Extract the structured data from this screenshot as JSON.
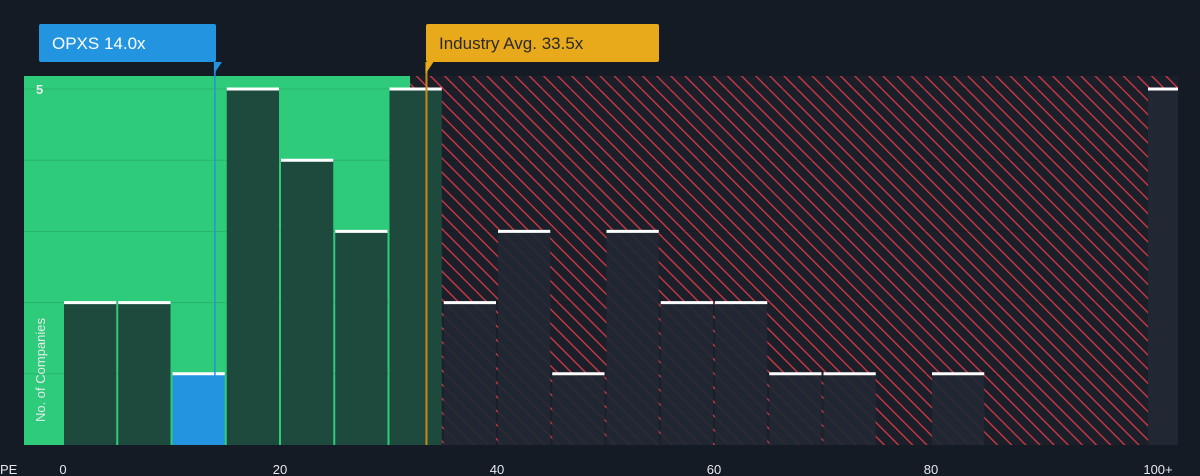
{
  "chart_data": {
    "type": "bar",
    "x_axis_label": "PE",
    "y_axis_label": "No. of Companies",
    "x_ticks": [
      "0",
      "20",
      "40",
      "60",
      "80",
      "100+"
    ],
    "y_ticks": [
      "5"
    ],
    "ylim": [
      0,
      5.2
    ],
    "bins": [
      {
        "x0": 0,
        "x1": 5,
        "value": 2
      },
      {
        "x0": 5,
        "x1": 10,
        "value": 2
      },
      {
        "x0": 10,
        "x1": 15,
        "value": 1
      },
      {
        "x0": 15,
        "x1": 20,
        "value": 5
      },
      {
        "x0": 20,
        "x1": 25,
        "value": 4
      },
      {
        "x0": 25,
        "x1": 30,
        "value": 3
      },
      {
        "x0": 30,
        "x1": 35,
        "value": 5
      },
      {
        "x0": 35,
        "x1": 40,
        "value": 2
      },
      {
        "x0": 40,
        "x1": 45,
        "value": 3
      },
      {
        "x0": 45,
        "x1": 50,
        "value": 1
      },
      {
        "x0": 50,
        "x1": 55,
        "value": 3
      },
      {
        "x0": 55,
        "x1": 60,
        "value": 2
      },
      {
        "x0": 60,
        "x1": 65,
        "value": 2
      },
      {
        "x0": 65,
        "x1": 70,
        "value": 1
      },
      {
        "x0": 70,
        "x1": 75,
        "value": 1
      },
      {
        "x0": 75,
        "x1": 80,
        "value": 0
      },
      {
        "x0": 80,
        "x1": 85,
        "value": 1
      },
      {
        "x0": 85,
        "x1": 90,
        "value": 0
      },
      {
        "x0": 90,
        "x1": 95,
        "value": 0
      },
      {
        "x0": 95,
        "x1": 100,
        "value": 0
      },
      {
        "x0": 100,
        "x1": 105,
        "value": 5
      }
    ],
    "company": {
      "label": "OPXS 14.0x",
      "value": 14.0
    },
    "industry": {
      "label": "Industry Avg. 33.5x",
      "value": 33.5
    },
    "fair_zone_max": 32,
    "colors": {
      "background": "#151b24",
      "fair_zone": "#2ecc7a",
      "bar_fair": "#1d4a3d",
      "bar_dark": "#222833",
      "bar_company": "#2394e0",
      "bar_top": "#ffffff",
      "hatch": "#d83a45",
      "company_callout": "#2394e0",
      "industry_callout": "#e8a91b",
      "industry_line": "#c8891a"
    }
  }
}
